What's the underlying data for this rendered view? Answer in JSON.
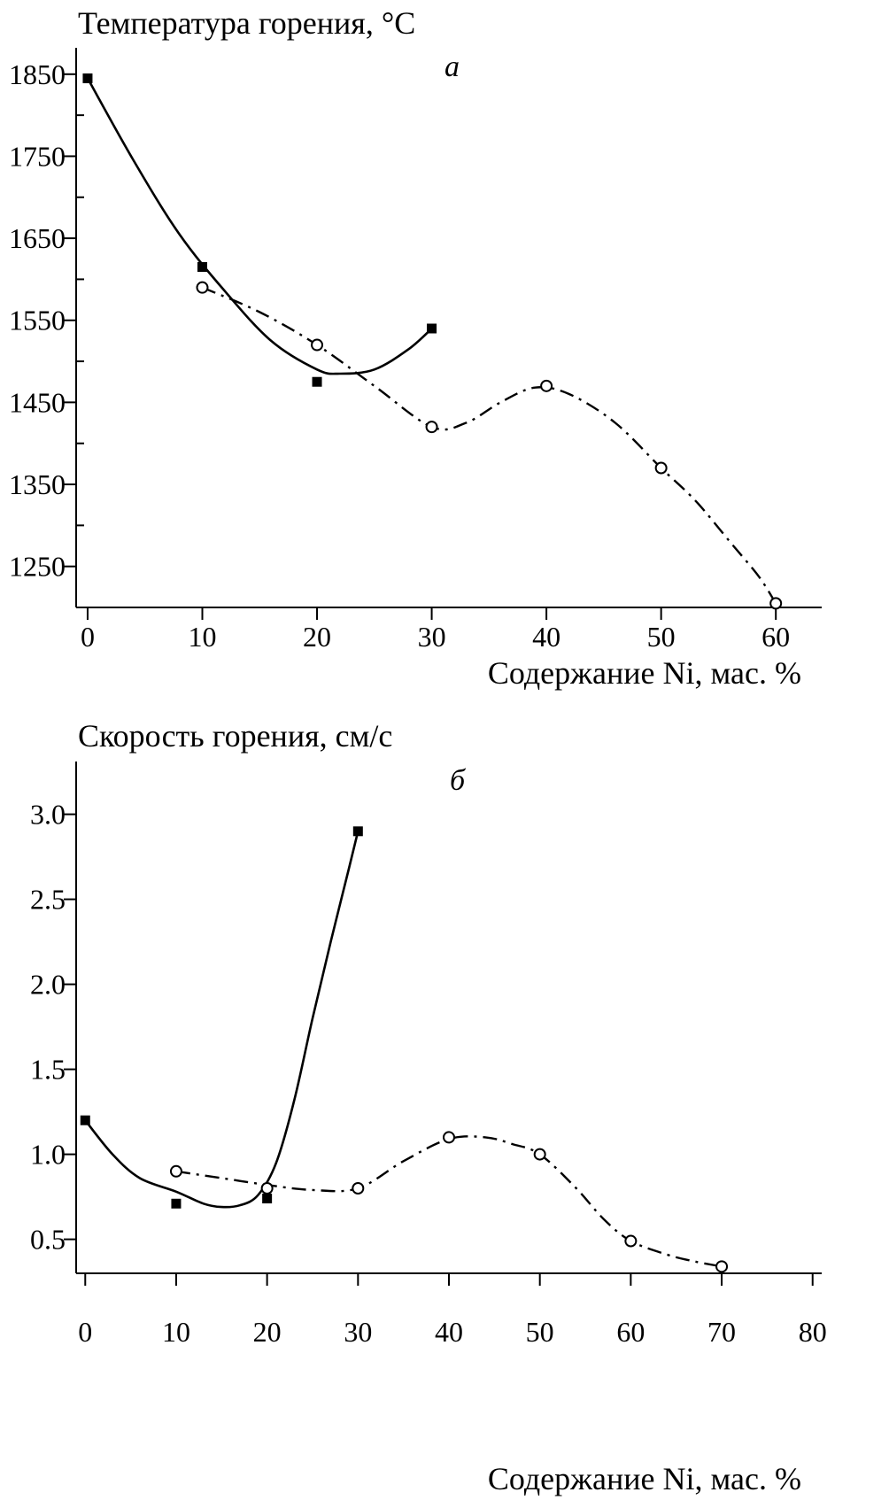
{
  "chart_data": [
    {
      "type": "line",
      "panel_letter": "а",
      "title": "Температура горения, °C",
      "xlabel": "Содержание Ni, мас. %",
      "ylabel": "",
      "xlim": [
        -1,
        64
      ],
      "ylim": [
        1200,
        1880
      ],
      "x_ticks": [
        0,
        10,
        20,
        30,
        40,
        50,
        60
      ],
      "y_ticks": [
        1250,
        1350,
        1450,
        1550,
        1650,
        1750,
        1850
      ],
      "x_tick_labels": [
        "0",
        "10",
        "20",
        "30",
        "40",
        "50",
        "60"
      ],
      "y_tick_labels": [
        "1250",
        "1350",
        "1450",
        "1550",
        "1650",
        "1750",
        "1850"
      ],
      "y_minor_ticks": [
        1200,
        1300,
        1400,
        1500,
        1600,
        1700,
        1800
      ],
      "grid": false,
      "series": [
        {
          "marker": "filled-square",
          "line": "solid",
          "points": [
            [
              0,
              1845
            ],
            [
              10,
              1615
            ],
            [
              20,
              1475
            ],
            [
              30,
              1540
            ]
          ],
          "curve": [
            [
              0,
              1845
            ],
            [
              4,
              1745
            ],
            [
              8,
              1655
            ],
            [
              12,
              1585
            ],
            [
              16,
              1525
            ],
            [
              20,
              1490
            ],
            [
              22,
              1485
            ],
            [
              25,
              1490
            ],
            [
              28,
              1515
            ],
            [
              30,
              1540
            ]
          ]
        },
        {
          "marker": "open-circle",
          "line": "dash-dot",
          "points": [
            [
              10,
              1590
            ],
            [
              20,
              1520
            ],
            [
              30,
              1420
            ],
            [
              40,
              1470
            ],
            [
              50,
              1370
            ],
            [
              60,
              1205
            ]
          ],
          "curve": [
            [
              10,
              1590
            ],
            [
              15,
              1560
            ],
            [
              20,
              1520
            ],
            [
              25,
              1470
            ],
            [
              30,
              1420
            ],
            [
              33,
              1425
            ],
            [
              36,
              1450
            ],
            [
              39,
              1468
            ],
            [
              42,
              1460
            ],
            [
              46,
              1425
            ],
            [
              50,
              1370
            ],
            [
              53,
              1330
            ],
            [
              56,
              1280
            ],
            [
              58.5,
              1238
            ],
            [
              60,
              1205
            ]
          ]
        }
      ]
    },
    {
      "type": "line",
      "panel_letter": "б",
      "title": "Скорость горения, см/с",
      "xlabel": "Содержание Ni, мас. %",
      "ylabel": "",
      "xlim": [
        -1,
        81
      ],
      "ylim": [
        0.3,
        3.3
      ],
      "x_ticks": [
        0,
        10,
        20,
        30,
        40,
        50,
        60,
        70,
        80
      ],
      "y_ticks": [
        0.5,
        1.0,
        1.5,
        2.0,
        2.5,
        3.0
      ],
      "x_tick_labels": [
        "0",
        "10",
        "20",
        "30",
        "40",
        "50",
        "60",
        "70",
        "80"
      ],
      "y_tick_labels": [
        "0.5",
        "1.0",
        "1.5",
        "2.0",
        "2.5",
        "3.0"
      ],
      "grid": false,
      "series": [
        {
          "marker": "filled-square",
          "line": "solid",
          "points": [
            [
              0,
              1.2
            ],
            [
              10,
              0.71
            ],
            [
              20,
              0.74
            ],
            [
              30,
              2.9
            ]
          ],
          "curve": [
            [
              0,
              1.2
            ],
            [
              3,
              1.0
            ],
            [
              6,
              0.86
            ],
            [
              10,
              0.78
            ],
            [
              13,
              0.71
            ],
            [
              15,
              0.69
            ],
            [
              17,
              0.7
            ],
            [
              19,
              0.76
            ],
            [
              21,
              0.95
            ],
            [
              23,
              1.32
            ],
            [
              25,
              1.8
            ],
            [
              27,
              2.25
            ],
            [
              29,
              2.68
            ],
            [
              30,
              2.9
            ]
          ]
        },
        {
          "marker": "open-circle",
          "line": "dash-dot",
          "points": [
            [
              10,
              0.9
            ],
            [
              20,
              0.8
            ],
            [
              30,
              0.8
            ],
            [
              40,
              1.1
            ],
            [
              50,
              1.0
            ],
            [
              60,
              0.49
            ],
            [
              70,
              0.34
            ]
          ],
          "curve": [
            [
              10,
              0.9
            ],
            [
              15,
              0.86
            ],
            [
              20,
              0.82
            ],
            [
              25,
              0.79
            ],
            [
              30,
              0.8
            ],
            [
              35,
              0.96
            ],
            [
              40,
              1.09
            ],
            [
              44,
              1.1
            ],
            [
              47,
              1.06
            ],
            [
              50,
              1.0
            ],
            [
              54,
              0.8
            ],
            [
              57,
              0.62
            ],
            [
              60,
              0.49
            ],
            [
              64,
              0.41
            ],
            [
              67,
              0.37
            ],
            [
              70,
              0.34
            ]
          ]
        }
      ]
    }
  ]
}
